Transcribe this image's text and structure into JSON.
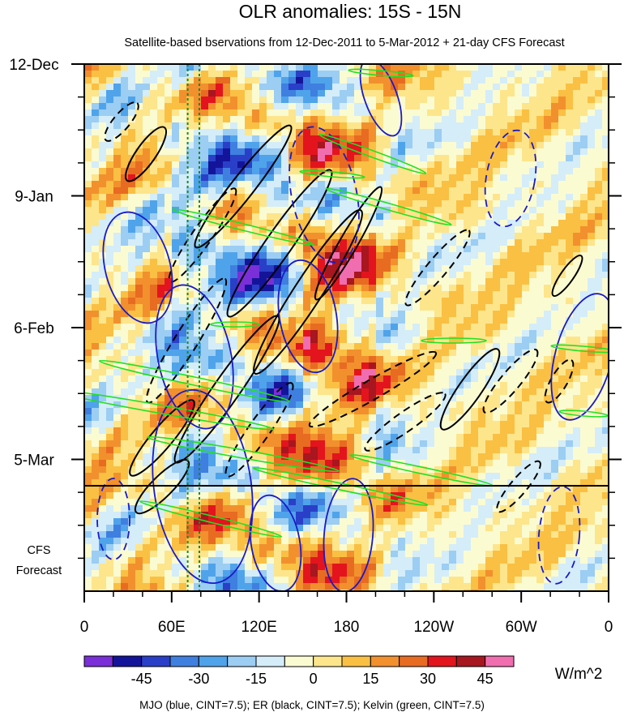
{
  "chart_data": {
    "type": "heatmap",
    "title": "OLR anomalies: 15S - 15N",
    "subtitle": "Satellite-based bservations from 12-Dec-2011 to 5-Mar-2012 + 21-day CFS Forecast",
    "ylabels": [
      "12-Dec",
      "9-Jan",
      "6-Feb",
      "5-Mar"
    ],
    "forecast_label": [
      "CFS",
      "Forecast"
    ],
    "xlabels": [
      "0",
      "60E",
      "120E",
      "180",
      "120W",
      "60W",
      "0"
    ],
    "longitude_range": [
      0,
      360
    ],
    "time_range_days": [
      0,
      112
    ],
    "forecast_start_day": 84,
    "colorbar": {
      "tick_labels": [
        "-45",
        "-30",
        "-15",
        "0",
        "15",
        "30",
        "45"
      ],
      "units": "W/m^2",
      "levels": [
        -52.5,
        -45,
        -37.5,
        -30,
        -22.5,
        -15,
        -7.5,
        0,
        7.5,
        15,
        22.5,
        30,
        37.5,
        45,
        52.5
      ],
      "colors": [
        "#7a2fd8",
        "#14149a",
        "#2a3fc8",
        "#3f7fe0",
        "#4fa3ea",
        "#9ccdf3",
        "#d4edf9",
        "#fbfbd2",
        "#fde58c",
        "#fac043",
        "#f2902e",
        "#e86b22",
        "#e3141d",
        "#a8161f",
        "#f06db0"
      ]
    },
    "footer": "MJO (blue, CINT=7.5); ER (black, CINT=7.5); Kelvin (green, CINT=7.5)",
    "series": [
      {
        "name": "MJO",
        "color": "#1a1ac8",
        "cint": 7.5
      },
      {
        "name": "ER",
        "color": "#000000",
        "cint": 7.5
      },
      {
        "name": "Kelvin",
        "color": "#22e022",
        "cint": 7.5
      }
    ]
  }
}
